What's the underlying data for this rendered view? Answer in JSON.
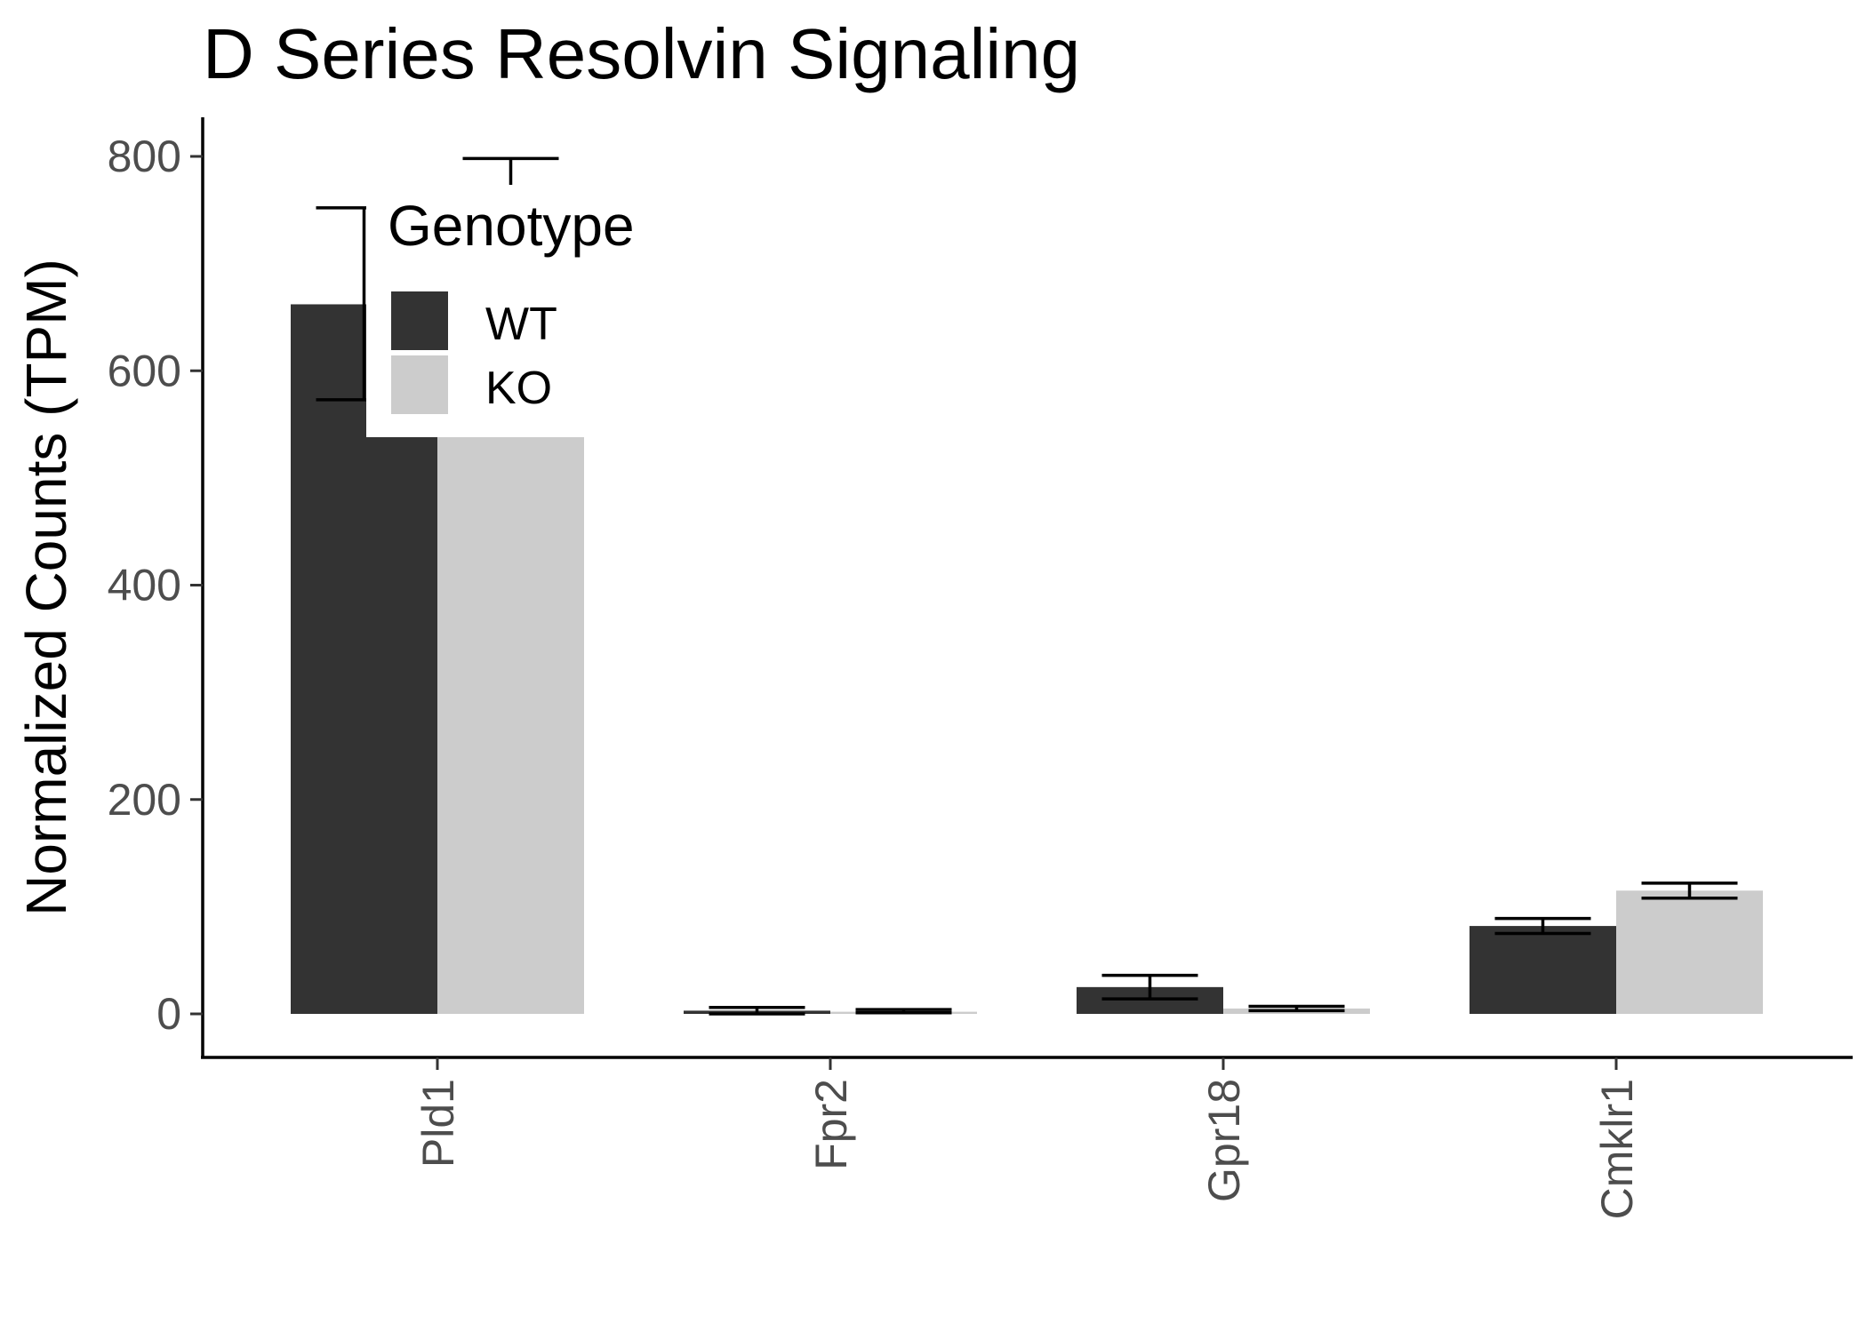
{
  "chart_data": {
    "type": "bar",
    "title": "D Series Resolvin Signaling",
    "xlabel": "",
    "ylabel": "Normalized Counts (TPM)",
    "categories": [
      "Pld1",
      "Fpr2",
      "Gpr18",
      "Cmklr1"
    ],
    "series": [
      {
        "name": "WT",
        "color": "#333333",
        "values": [
          662,
          3,
          25,
          82
        ],
        "error_low": [
          573,
          0,
          14,
          75
        ],
        "error_high": [
          752,
          6,
          36,
          89
        ]
      },
      {
        "name": "KO",
        "color": "#cccccc",
        "values": [
          694,
          2,
          5,
          115
        ],
        "error_low": [
          589,
          1,
          3,
          108
        ],
        "error_high": [
          798,
          4,
          7,
          122
        ]
      }
    ],
    "ylim": [
      0,
      830
    ],
    "yticks": [
      0,
      200,
      400,
      600,
      800
    ],
    "legend": {
      "title": "Genotype",
      "position": "top-left"
    },
    "grid": false
  }
}
